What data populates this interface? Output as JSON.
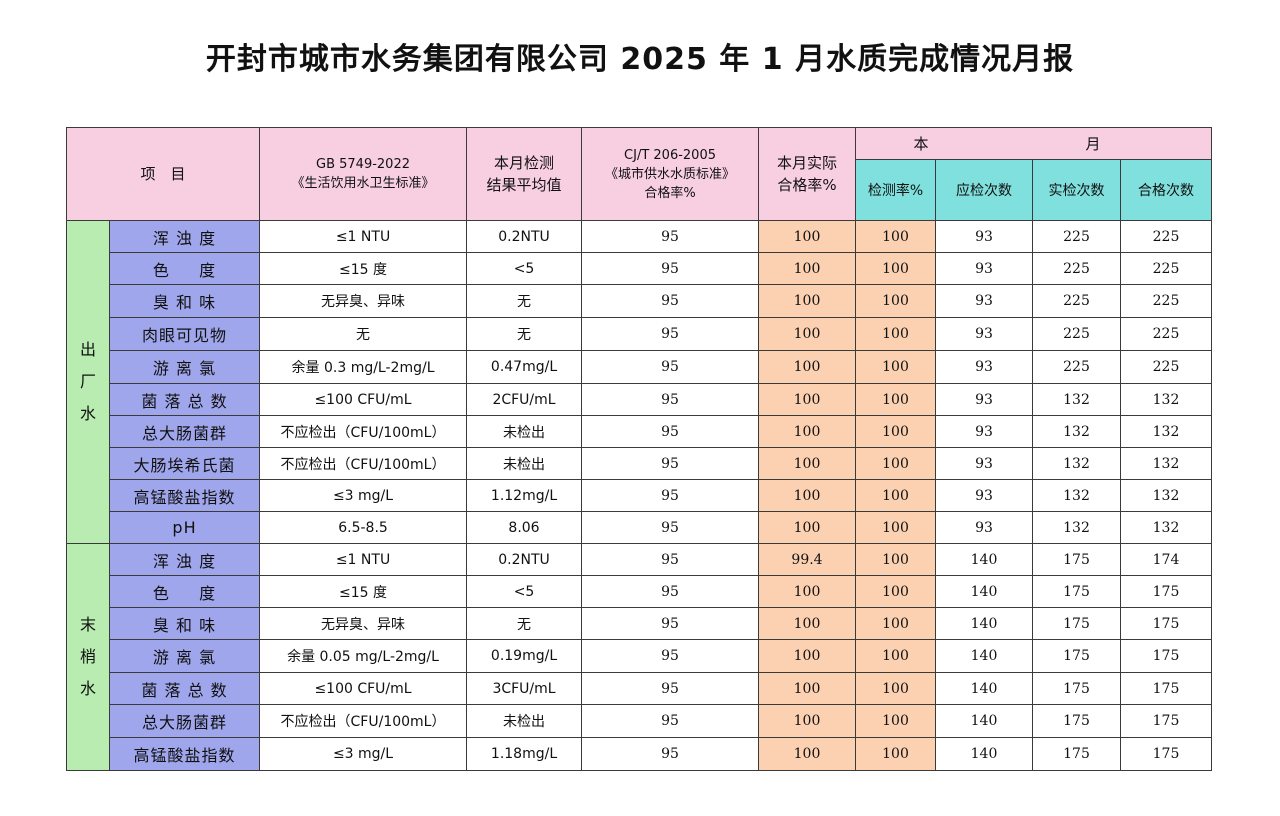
{
  "title": "开封市城市水务集团有限公司 2025 年 1 月水质完成情况月报",
  "header": {
    "item": "项　目",
    "gb_line1": "GB 5749-2022",
    "gb_line2": "《生活饮用水卫生标准》",
    "avg_line1": "本月检测",
    "avg_line2": "结果平均值",
    "cj_line1": "CJ/T 206-2005",
    "cj_line2": "《城市供水水质标准》",
    "cj_line3": "合格率%",
    "actual_line1": "本月实际",
    "actual_line2": "合格率%",
    "month_left": "本",
    "month_right": "月",
    "sub": [
      "检测率%",
      "应检次数",
      "实检次数",
      "合格次数"
    ]
  },
  "groups": [
    {
      "name": "出厂水",
      "rows": [
        {
          "item": "浑 浊 度",
          "standard": "≤1 NTU",
          "avg": "0.2NTU",
          "cj": "95",
          "actual": "100",
          "rate": "100",
          "required": "93",
          "tested": "225",
          "passed": "225"
        },
        {
          "item": "色 　 度",
          "standard": "≤15 度",
          "avg": "<5",
          "cj": "95",
          "actual": "100",
          "rate": "100",
          "required": "93",
          "tested": "225",
          "passed": "225"
        },
        {
          "item": "臭 和 味",
          "standard": "无异臭、异味",
          "avg": "无",
          "cj": "95",
          "actual": "100",
          "rate": "100",
          "required": "93",
          "tested": "225",
          "passed": "225"
        },
        {
          "item": "肉眼可见物",
          "standard": "无",
          "avg": "无",
          "cj": "95",
          "actual": "100",
          "rate": "100",
          "required": "93",
          "tested": "225",
          "passed": "225"
        },
        {
          "item": "游 离 氯",
          "standard": "余量 0.3 mg/L-2mg/L",
          "avg": "0.47mg/L",
          "cj": "95",
          "actual": "100",
          "rate": "100",
          "required": "93",
          "tested": "225",
          "passed": "225"
        },
        {
          "item": "菌 落 总 数",
          "standard": "≤100 CFU/mL",
          "avg": "2CFU/mL",
          "cj": "95",
          "actual": "100",
          "rate": "100",
          "required": "93",
          "tested": "132",
          "passed": "132"
        },
        {
          "item": "总大肠菌群",
          "standard": "不应检出（CFU/100mL）",
          "avg": "未检出",
          "cj": "95",
          "actual": "100",
          "rate": "100",
          "required": "93",
          "tested": "132",
          "passed": "132"
        },
        {
          "item": "大肠埃希氏菌",
          "standard": "不应检出（CFU/100mL）",
          "avg": "未检出",
          "cj": "95",
          "actual": "100",
          "rate": "100",
          "required": "93",
          "tested": "132",
          "passed": "132"
        },
        {
          "item": "高锰酸盐指数",
          "standard": "≤3 mg/L",
          "avg": "1.12mg/L",
          "cj": "95",
          "actual": "100",
          "rate": "100",
          "required": "93",
          "tested": "132",
          "passed": "132"
        },
        {
          "item": "pH",
          "standard": "6.5-8.5",
          "avg": "8.06",
          "cj": "95",
          "actual": "100",
          "rate": "100",
          "required": "93",
          "tested": "132",
          "passed": "132"
        }
      ]
    },
    {
      "name": "末梢水",
      "rows": [
        {
          "item": "浑 浊 度",
          "standard": "≤1 NTU",
          "avg": "0.2NTU",
          "cj": "95",
          "actual": "99.4",
          "rate": "100",
          "required": "140",
          "tested": "175",
          "passed": "174"
        },
        {
          "item": "色 　 度",
          "standard": "≤15 度",
          "avg": "<5",
          "cj": "95",
          "actual": "100",
          "rate": "100",
          "required": "140",
          "tested": "175",
          "passed": "175"
        },
        {
          "item": "臭 和 味",
          "standard": "无异臭、异味",
          "avg": "无",
          "cj": "95",
          "actual": "100",
          "rate": "100",
          "required": "140",
          "tested": "175",
          "passed": "175"
        },
        {
          "item": "游 离 氯",
          "standard": "余量 0.05 mg/L-2mg/L",
          "avg": "0.19mg/L",
          "cj": "95",
          "actual": "100",
          "rate": "100",
          "required": "140",
          "tested": "175",
          "passed": "175"
        },
        {
          "item": "菌 落 总 数",
          "standard": "≤100 CFU/mL",
          "avg": "3CFU/mL",
          "cj": "95",
          "actual": "100",
          "rate": "100",
          "required": "140",
          "tested": "175",
          "passed": "175"
        },
        {
          "item": "总大肠菌群",
          "standard": "不应检出（CFU/100mL）",
          "avg": "未检出",
          "cj": "95",
          "actual": "100",
          "rate": "100",
          "required": "140",
          "tested": "175",
          "passed": "175"
        },
        {
          "item": "高锰酸盐指数",
          "standard": "≤3 mg/L",
          "avg": "1.18mg/L",
          "cj": "95",
          "actual": "100",
          "rate": "100",
          "required": "140",
          "tested": "175",
          "passed": "175"
        }
      ]
    }
  ],
  "colors": {
    "header_pink": "#f7cfe0",
    "subheader_cyan": "#7fe0dd",
    "category_green": "#b8ecb0",
    "item_blue": "#9fa6ec",
    "actual_peach": "#fbd1b2"
  }
}
